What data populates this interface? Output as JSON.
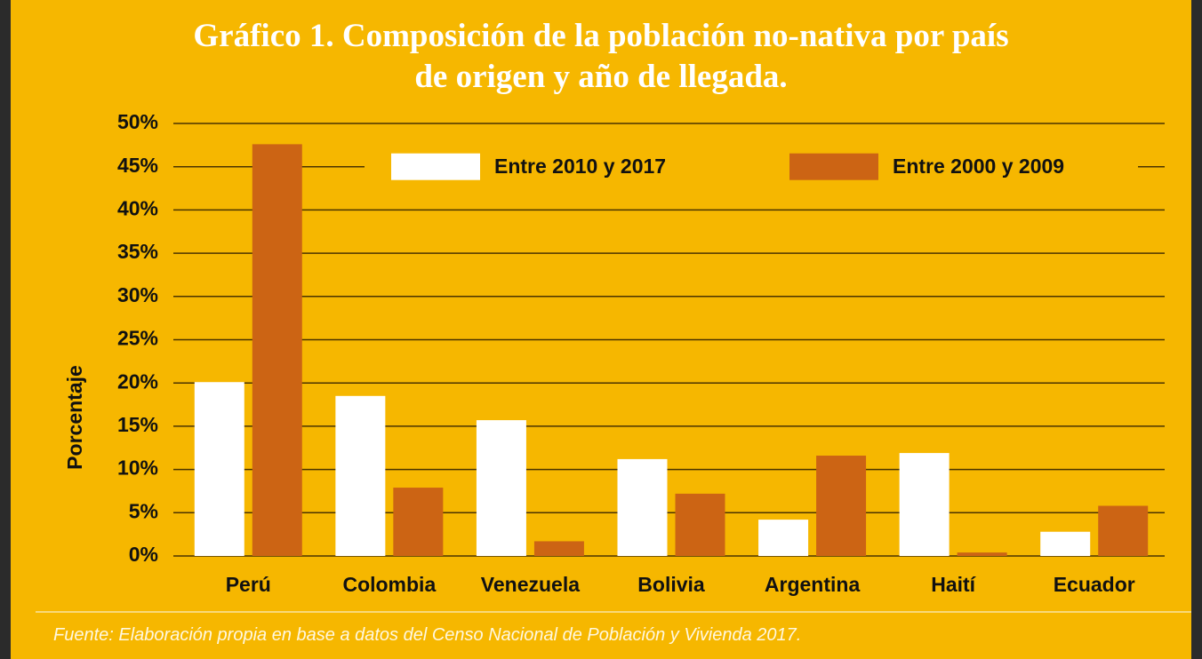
{
  "chart_data": {
    "type": "bar",
    "title": "Gráfico 1. Composición de la población no-nativa por país\nde origen y año de llegada.",
    "ylabel": "Porcentaje",
    "source": "Fuente: Elaboración propia en base a datos del Censo Nacional de Población y Vivienda 2017.",
    "categories": [
      "Perú",
      "Colombia",
      "Venezuela",
      "Bolivia",
      "Argentina",
      "Haití",
      "Ecuador"
    ],
    "series": [
      {
        "name": "Entre 2010 y 2017",
        "color": "#ffffff",
        "values": [
          20.1,
          18.5,
          15.7,
          11.2,
          4.2,
          11.9,
          2.8
        ]
      },
      {
        "name": "Entre 2000 y 2009",
        "color": "#cc6414",
        "values": [
          47.6,
          7.9,
          1.7,
          7.2,
          11.6,
          0.4,
          5.8
        ]
      }
    ],
    "ylim": [
      0,
      50
    ],
    "yticks": [
      {
        "value": 0,
        "label": "0%"
      },
      {
        "value": 5,
        "label": "5%"
      },
      {
        "value": 10,
        "label": "10%"
      },
      {
        "value": 15,
        "label": "15%"
      },
      {
        "value": 20,
        "label": "20%"
      },
      {
        "value": 25,
        "label": "25%"
      },
      {
        "value": 30,
        "label": "30%"
      },
      {
        "value": 35,
        "label": "35%"
      },
      {
        "value": 40,
        "label": "40%"
      },
      {
        "value": 45,
        "label": "45%"
      },
      {
        "value": 50,
        "label": "50%"
      }
    ],
    "grid": true
  }
}
